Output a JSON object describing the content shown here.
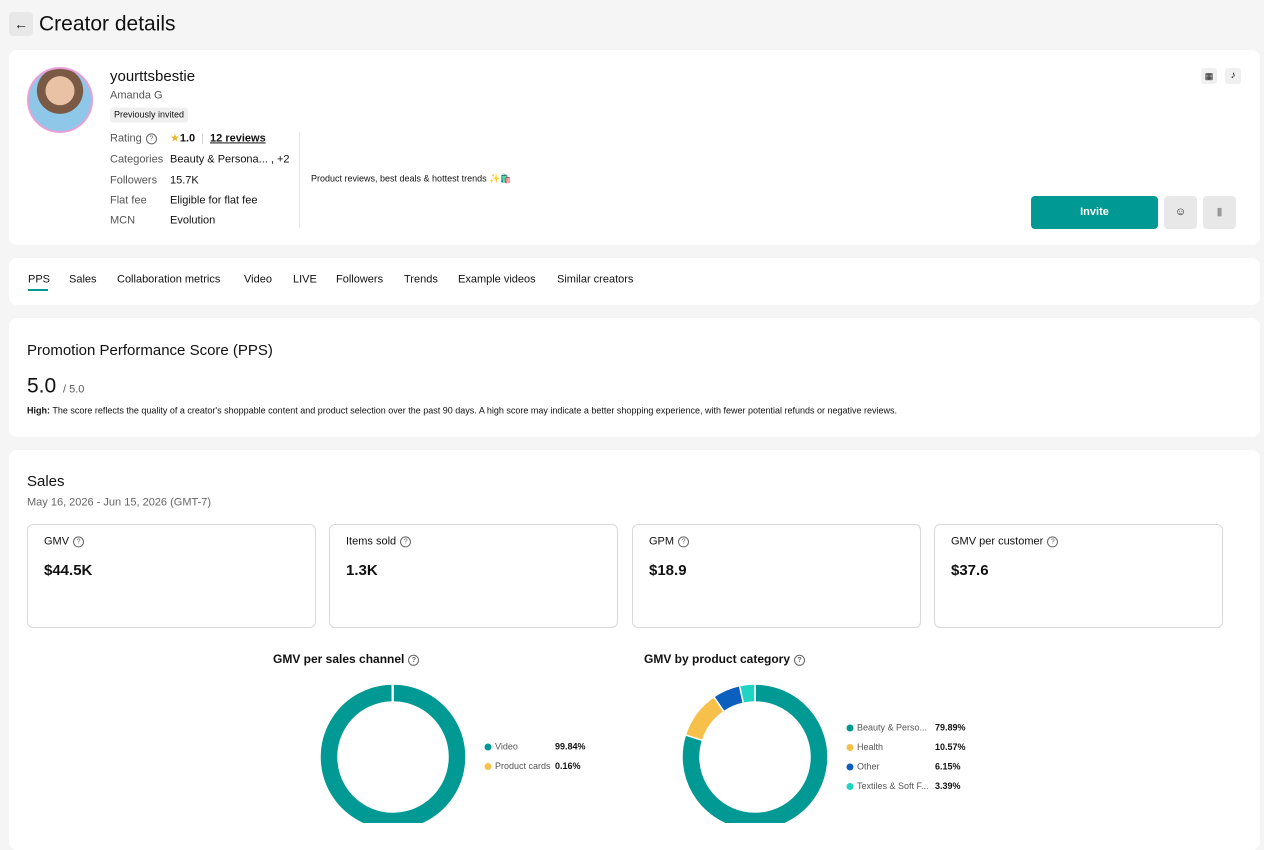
{
  "header": {
    "title": "Creator details"
  },
  "profile": {
    "username": "yourttsbestie",
    "name": "Amanda G",
    "badge": "Previously invited",
    "rating": {
      "label": "Rating",
      "value": "1.0",
      "reviews": "12 reviews"
    },
    "details": [
      {
        "label": "Categories",
        "value": "Beauty & Persona... , +2"
      },
      {
        "label": "Followers",
        "value": "15.7K"
      },
      {
        "label": "Flat fee",
        "value": "Eligible for flat fee"
      },
      {
        "label": "MCN",
        "value": "Evolution"
      }
    ],
    "bio": "Product reviews, best deals & hottest trends ✨🛍️",
    "invite": "Invite"
  },
  "tabs": [
    "PPS",
    "Sales",
    "Collaboration metrics",
    "Video",
    "LIVE",
    "Followers",
    "Trends",
    "Example videos",
    "Similar creators"
  ],
  "pps": {
    "title": "Promotion Performance Score (PPS)",
    "score": "5.0",
    "max": "/ 5.0",
    "lead": "High:",
    "description": "The score reflects the quality of a creator's shoppable content and product selection over the past 90 days. A high score may indicate a better shopping experience, with fewer potential refunds or negative reviews."
  },
  "sales": {
    "title": "Sales",
    "date_range": "May 16, 2026 - Jun 15, 2026 (GMT-7)",
    "metrics": [
      {
        "label": "GMV",
        "value": "$44.5K"
      },
      {
        "label": "Items sold",
        "value": "1.3K"
      },
      {
        "label": "GPM",
        "value": "$18.9"
      },
      {
        "label": "GMV per customer",
        "value": "$37.6"
      }
    ]
  },
  "chart_data": [
    {
      "type": "donut",
      "title": "GMV per sales channel",
      "categories": [
        "Video",
        "Product cards"
      ],
      "values": [
        99.84,
        0.16
      ],
      "value_labels": [
        "99.84%",
        "0.16%"
      ],
      "colors": [
        "#009994",
        "#f7c04a"
      ]
    },
    {
      "type": "donut",
      "title": "GMV by product category",
      "categories": [
        "Beauty & Perso...",
        "Health",
        "Other",
        "Textiles & Soft F..."
      ],
      "values": [
        79.89,
        10.57,
        6.15,
        3.39
      ],
      "value_labels": [
        "79.89%",
        "10.57%",
        "6.15%",
        "3.39%"
      ],
      "colors": [
        "#009994",
        "#f7c04a",
        "#0a5fbf",
        "#20d3c2"
      ]
    }
  ]
}
